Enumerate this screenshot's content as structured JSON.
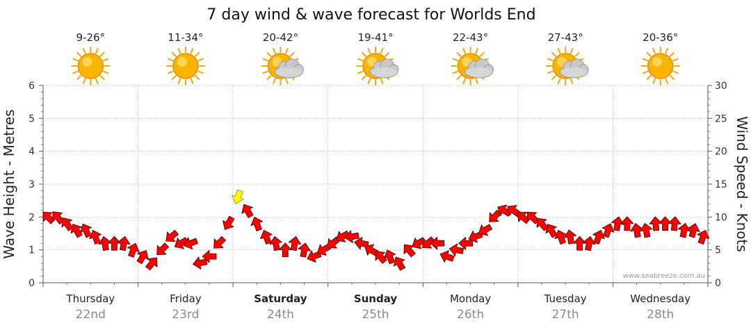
{
  "chart_data": {
    "type": "line",
    "title": "7 day wind & wave forecast for Worlds End",
    "y_left_label": "Wave Height - Metres",
    "y_right_label": "Wind Speed - Knots",
    "y_left_range": [
      0,
      6
    ],
    "y_right_range": [
      0,
      30
    ],
    "y_left_ticks": [
      "0",
      "1",
      "2",
      "3",
      "4",
      "5",
      "6"
    ],
    "y_right_ticks": [
      "0",
      "5",
      "10",
      "15",
      "20",
      "25",
      "30"
    ],
    "credit": "www.seabreeze.com.au",
    "days": [
      {
        "name": "Thursday",
        "date": "22nd",
        "temp": "9-26°",
        "icon": "sun-icon",
        "bold": false
      },
      {
        "name": "Friday",
        "date": "23rd",
        "temp": "11-34°",
        "icon": "sun-icon",
        "bold": false
      },
      {
        "name": "Saturday",
        "date": "24th",
        "temp": "20-42°",
        "icon": "sun-cloud-icon",
        "bold": true
      },
      {
        "name": "Sunday",
        "date": "25th",
        "temp": "19-41°",
        "icon": "sun-cloud-icon",
        "bold": true
      },
      {
        "name": "Monday",
        "date": "26th",
        "temp": "22-43°",
        "icon": "sun-cloud-icon",
        "bold": false
      },
      {
        "name": "Tuesday",
        "date": "27th",
        "temp": "27-43°",
        "icon": "sun-cloud-icon",
        "bold": false
      },
      {
        "name": "Wednesday",
        "date": "28th",
        "temp": "20-36°",
        "icon": "sun-icon",
        "bold": false
      }
    ],
    "wind_series": {
      "name": "Wind Speed (knots)",
      "x_days": [
        0.0,
        0.1,
        0.2,
        0.3,
        0.4,
        0.5,
        0.6,
        0.7,
        0.8,
        0.9,
        1.0,
        1.1,
        1.2,
        1.3,
        1.4,
        1.5,
        1.6,
        1.7,
        1.8,
        1.9,
        2.0,
        2.1,
        2.2,
        2.3,
        2.4,
        2.5,
        2.6,
        2.7,
        2.8,
        2.9,
        3.0,
        3.1,
        3.2,
        3.3,
        3.4,
        3.5,
        3.6,
        3.7,
        3.8,
        3.9,
        4.0,
        4.1,
        4.2,
        4.3,
        4.4,
        4.5,
        4.6,
        4.7,
        4.8,
        4.9,
        5.0,
        5.1,
        5.2,
        5.3,
        5.4,
        5.5,
        5.6,
        5.7,
        5.8,
        5.9,
        6.0,
        6.1,
        6.2,
        6.3,
        6.4,
        6.5,
        6.6,
        6.7,
        6.8,
        6.9
      ],
      "knots": [
        10,
        10,
        9,
        8,
        8,
        7,
        6,
        6,
        6,
        5,
        4,
        3,
        5,
        7,
        6,
        6,
        3,
        4,
        6,
        9,
        13,
        11,
        9,
        7,
        6,
        5,
        6,
        5,
        4,
        5,
        6,
        7,
        7,
        6,
        5,
        4,
        4,
        3,
        5,
        6,
        6,
        6,
        4,
        5,
        6,
        7,
        8,
        10,
        11,
        11,
        10,
        10,
        9,
        8,
        7,
        7,
        6,
        6,
        7,
        8,
        9,
        9,
        8,
        8,
        9,
        9,
        9,
        8,
        8,
        7
      ],
      "wind_dir_deg": [
        135,
        140,
        145,
        150,
        155,
        160,
        170,
        180,
        190,
        200,
        210,
        220,
        45,
        50,
        60,
        70,
        80,
        90,
        45,
        30,
        20,
        150,
        160,
        160,
        170,
        180,
        190,
        190,
        70,
        60,
        50,
        60,
        80,
        100,
        120,
        140,
        160,
        150,
        140,
        60,
        50,
        90,
        110,
        100,
        90,
        70,
        60,
        45,
        120,
        125,
        130,
        135,
        140,
        150,
        160,
        170,
        180,
        190,
        200,
        200,
        190,
        180,
        170,
        170,
        175,
        180,
        185,
        190,
        195,
        200
      ]
    }
  }
}
